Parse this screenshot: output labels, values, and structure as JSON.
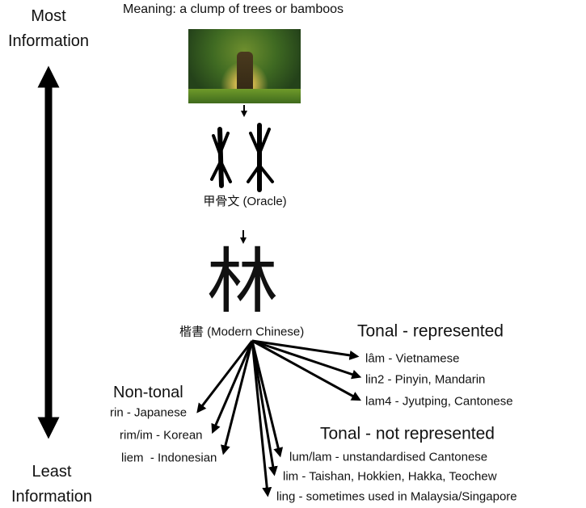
{
  "side": {
    "top_line1": "Most",
    "top_line2": "Information",
    "bottom_line1": "Least",
    "bottom_line2": "Information"
  },
  "meaning": "Meaning: a clump of trees or bamboos",
  "oracle_label": "甲骨文 (Oracle)",
  "modern_char": "林",
  "modern_label": "楷書 (Modern Chinese)",
  "tonal_represented": {
    "heading": "Tonal - represented",
    "items": [
      "lâm - Vietnamese",
      "lin2 - Pinyin, Mandarin",
      "lam4 - Jyutping, Cantonese"
    ]
  },
  "non_tonal": {
    "heading": "Non-tonal",
    "items": [
      "rin - Japanese",
      "rim/im - Korean",
      "liem  - Indonesian"
    ]
  },
  "tonal_not_represented": {
    "heading": "Tonal - not represented",
    "items": [
      "lum/lam - unstandardised Cantonese",
      "lim - Taishan, Hokkien, Hakka, Teochew",
      "ling - sometimes used in Malaysia/Singapore"
    ]
  }
}
